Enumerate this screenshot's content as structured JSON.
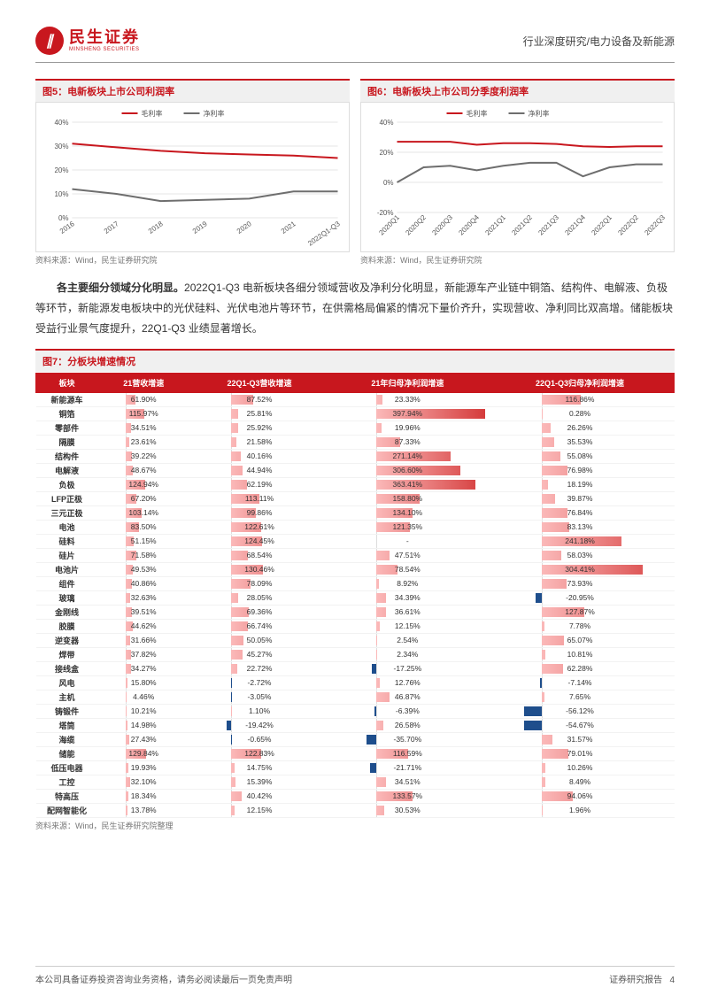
{
  "header": {
    "logo_cn": "民生证券",
    "logo_en": "MINSHENG SECURITIES",
    "right": "行业深度研究/电力设备及新能源"
  },
  "chart5": {
    "title": "图5：电新板块上市公司利润率",
    "source": "资料来源：Wind，民生证券研究院",
    "legend": [
      {
        "label": "毛利率",
        "color": "#c8171e"
      },
      {
        "label": "净利率",
        "color": "#6e6e6e"
      }
    ],
    "x_labels": [
      "2016",
      "2017",
      "2018",
      "2019",
      "2020",
      "2021",
      "2022Q1-Q3"
    ],
    "y_ticks": [
      "0%",
      "10%",
      "20%",
      "30%",
      "40%"
    ],
    "ylim": [
      0,
      40
    ],
    "series": {
      "gross": [
        31,
        29.5,
        28,
        27,
        26.5,
        26,
        25
      ],
      "net": [
        12,
        10,
        7,
        7.5,
        8,
        11,
        11
      ]
    },
    "grid_color": "#e5e5e5",
    "line_width": 2
  },
  "chart6": {
    "title": "图6：电新板块上市公司分季度利润率",
    "source": "资料来源：Wind，民生证券研究院",
    "legend": [
      {
        "label": "毛利率",
        "color": "#c8171e"
      },
      {
        "label": "净利率",
        "color": "#6e6e6e"
      }
    ],
    "x_labels": [
      "2020Q1",
      "2020Q2",
      "2020Q3",
      "2020Q4",
      "2021Q1",
      "2021Q2",
      "2021Q3",
      "2021Q4",
      "2022Q1",
      "2022Q2",
      "2022Q3"
    ],
    "y_ticks": [
      "-20%",
      "0%",
      "20%",
      "40%"
    ],
    "ylim": [
      -20,
      40
    ],
    "series": {
      "gross": [
        27,
        27,
        27,
        25,
        26,
        26,
        25.5,
        24,
        23.5,
        24,
        24
      ],
      "net": [
        0,
        10,
        11,
        8,
        11,
        13,
        13,
        4,
        10,
        12,
        12
      ]
    },
    "grid_color": "#e5e5e5",
    "line_width": 2
  },
  "paragraph": {
    "bold": "各主要细分领域分化明显。",
    "rest": "2022Q1-Q3 电新板块各细分领域营收及净利分化明显，新能源车产业链中铜箔、结构件、电解液、负极等环节，新能源发电板块中的光伏硅料、光伏电池片等环节，在供需格局偏紧的情况下量价齐升，实现营收、净利同比双高增。储能板块受益行业景气度提升，22Q1-Q3 业绩显著增长。"
  },
  "table7": {
    "title": "图7：分板块增速情况",
    "source": "资料来源：Wind，民生证券研究院整理",
    "columns": [
      "板块",
      "21营收增速",
      "22Q1-Q3营收增速",
      "21年归母净利润增速",
      "22Q1-Q3归母净利润增速"
    ],
    "pos_color_start": "#fbb9b9",
    "pos_color_end": "#d53a3a",
    "neg_color": "#1e4e8c",
    "max_abs": 400,
    "rows": [
      {
        "label": "新能源车",
        "v": [
          61.9,
          87.52,
          23.33,
          116.86
        ]
      },
      {
        "label": "铜箔",
        "v": [
          115.97,
          25.81,
          397.94,
          0.28
        ]
      },
      {
        "label": "零部件",
        "v": [
          34.51,
          25.92,
          19.96,
          26.26
        ]
      },
      {
        "label": "隔膜",
        "v": [
          23.61,
          21.58,
          87.33,
          35.53
        ]
      },
      {
        "label": "结构件",
        "v": [
          39.22,
          40.16,
          271.14,
          55.08
        ]
      },
      {
        "label": "电解液",
        "v": [
          48.67,
          44.94,
          306.6,
          76.98
        ]
      },
      {
        "label": "负极",
        "v": [
          124.94,
          62.19,
          363.41,
          18.19
        ]
      },
      {
        "label": "LFP正极",
        "v": [
          67.2,
          113.11,
          158.8,
          39.87
        ]
      },
      {
        "label": "三元正极",
        "v": [
          103.14,
          99.86,
          134.1,
          76.84
        ]
      },
      {
        "label": "电池",
        "v": [
          83.5,
          122.61,
          121.35,
          83.13
        ]
      },
      {
        "label": "硅料",
        "v": [
          51.15,
          124.45,
          null,
          241.18
        ]
      },
      {
        "label": "硅片",
        "v": [
          71.58,
          68.54,
          47.51,
          58.03
        ]
      },
      {
        "label": "电池片",
        "v": [
          49.53,
          130.46,
          78.54,
          304.41
        ]
      },
      {
        "label": "组件",
        "v": [
          40.86,
          78.09,
          8.92,
          73.93
        ]
      },
      {
        "label": "玻璃",
        "v": [
          32.63,
          28.05,
          34.39,
          -20.95
        ]
      },
      {
        "label": "金刚线",
        "v": [
          39.51,
          69.36,
          36.61,
          127.87
        ]
      },
      {
        "label": "胶膜",
        "v": [
          44.62,
          66.74,
          12.15,
          7.78
        ]
      },
      {
        "label": "逆变器",
        "v": [
          31.66,
          50.05,
          2.54,
          65.07
        ]
      },
      {
        "label": "焊带",
        "v": [
          37.82,
          45.27,
          2.34,
          10.81
        ]
      },
      {
        "label": "接线盒",
        "v": [
          34.27,
          22.72,
          -17.25,
          62.28
        ]
      },
      {
        "label": "风电",
        "v": [
          15.8,
          -2.72,
          12.76,
          -7.14
        ]
      },
      {
        "label": "主机",
        "v": [
          4.46,
          -3.05,
          46.87,
          7.65
        ]
      },
      {
        "label": "铸锻件",
        "v": [
          10.21,
          1.1,
          -6.39,
          -56.12
        ]
      },
      {
        "label": "塔筒",
        "v": [
          14.98,
          -19.42,
          26.58,
          -54.67
        ]
      },
      {
        "label": "海缆",
        "v": [
          27.43,
          -0.65,
          -35.7,
          31.57
        ]
      },
      {
        "label": "储能",
        "v": [
          129.84,
          122.83,
          116.59,
          79.01
        ]
      },
      {
        "label": "低压电器",
        "v": [
          19.93,
          14.75,
          -21.71,
          10.26
        ]
      },
      {
        "label": "工控",
        "v": [
          32.1,
          15.39,
          34.51,
          8.49
        ]
      },
      {
        "label": "特高压",
        "v": [
          18.34,
          40.42,
          133.57,
          94.06
        ]
      },
      {
        "label": "配网智能化",
        "v": [
          13.78,
          12.15,
          30.53,
          1.96
        ]
      }
    ]
  },
  "footer": {
    "left": "本公司具备证券投资咨询业务资格，请务必阅读最后一页免责声明",
    "right_label": "证券研究报告",
    "page": "4"
  }
}
